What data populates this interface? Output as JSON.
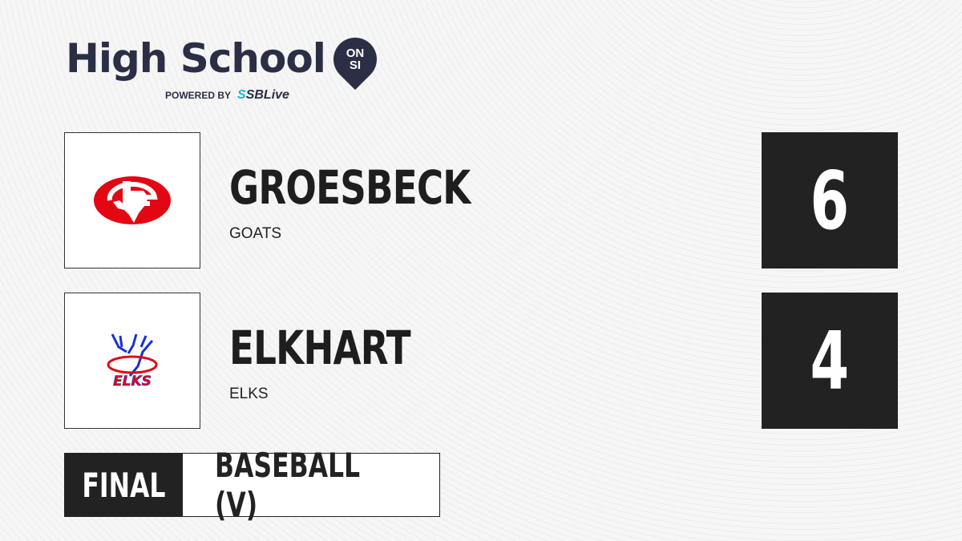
{
  "brand": {
    "title": "High School",
    "badge_top": "ON",
    "badge_bottom": "SI",
    "powered_by": "POWERED BY",
    "partner_a": "S",
    "partner_b": "SBLive"
  },
  "teams": [
    {
      "name": "GROESBECK",
      "mascot": "GOATS",
      "score": "6",
      "logo_color": "#e30613"
    },
    {
      "name": "ELKHART",
      "mascot": "ELKS",
      "score": "4",
      "logo_text": "ELKS",
      "logo_color": "#e30613",
      "logo_accent": "#1a2fd6"
    }
  ],
  "game": {
    "status": "FINAL",
    "sport": "BASEBALL (V)"
  }
}
